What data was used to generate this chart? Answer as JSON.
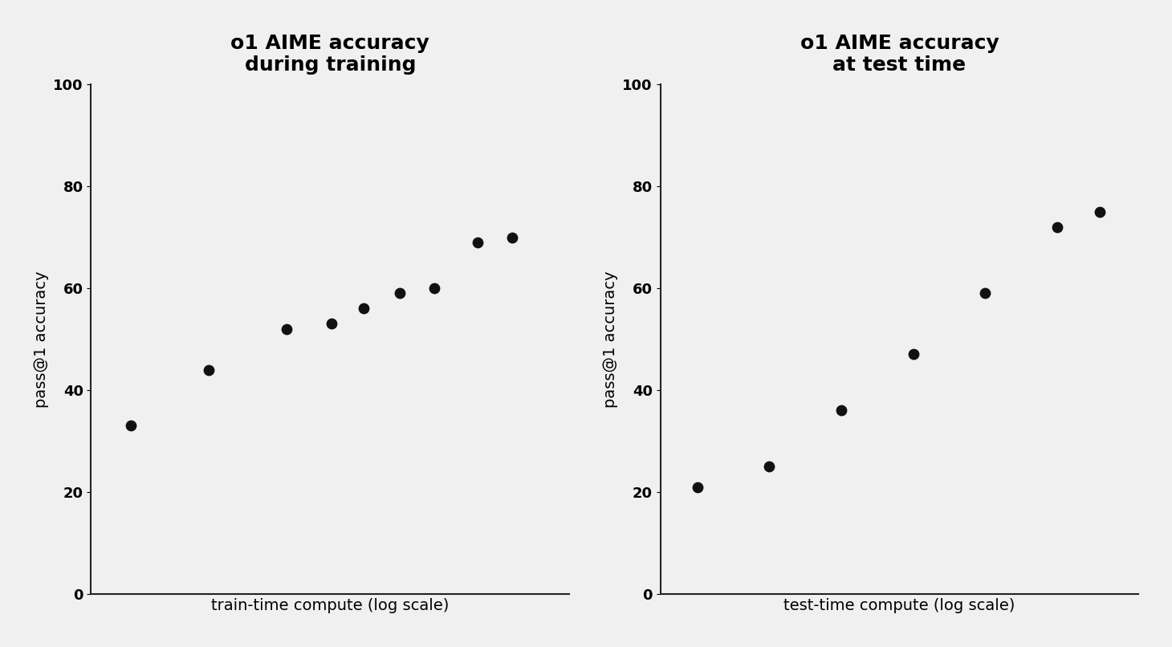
{
  "left_title": "o1 AIME accuracy\nduring training",
  "right_title": "o1 AIME accuracy\nat test time",
  "left_xlabel": "train-time compute (log scale)",
  "right_xlabel": "test-time compute (log scale)",
  "ylabel": "pass@1 accuracy",
  "left_x": [
    1,
    2,
    4,
    6,
    8,
    11,
    15,
    22,
    30
  ],
  "left_y": [
    33,
    44,
    52,
    53,
    56,
    59,
    60,
    69,
    70
  ],
  "right_x": [
    1,
    2,
    4,
    8,
    16,
    32,
    48
  ],
  "right_y": [
    21,
    25,
    36,
    47,
    59,
    72,
    75
  ],
  "ylim": [
    0,
    100
  ],
  "yticks": [
    0,
    20,
    40,
    60,
    80,
    100
  ],
  "dot_color": "#111111",
  "dot_size": 80,
  "background_color": "#f0f0f0",
  "title_fontsize": 18,
  "label_fontsize": 14,
  "tick_fontsize": 13,
  "spine_color": "#222222"
}
